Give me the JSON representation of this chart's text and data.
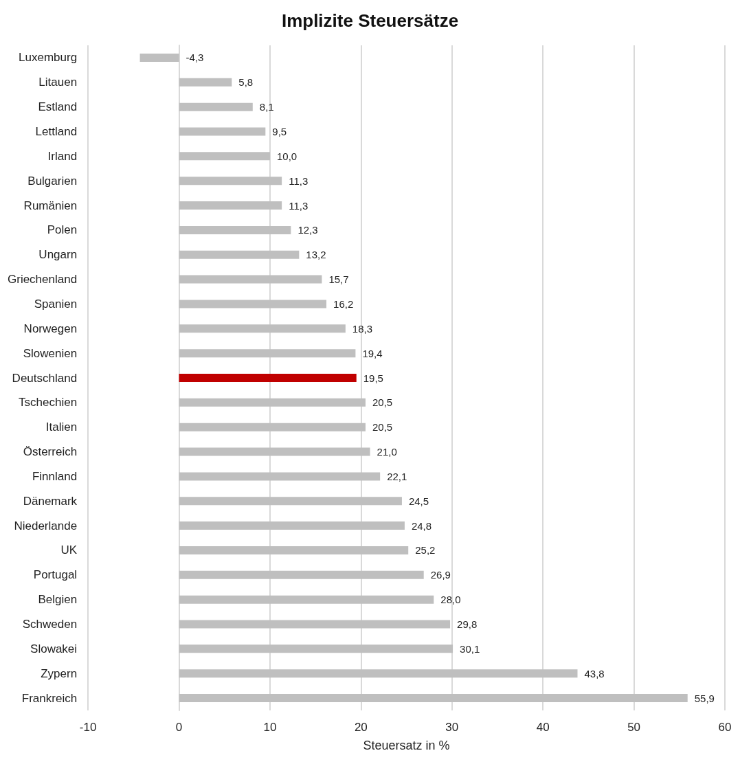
{
  "chart_data": {
    "type": "bar",
    "orientation": "horizontal",
    "title": "Implizite Steuersätze",
    "xlabel": "Steuersatz in %",
    "categories": [
      "Luxemburg",
      "Litauen",
      "Estland",
      "Lettland",
      "Irland",
      "Bulgarien",
      "Rumänien",
      "Polen",
      "Ungarn",
      "Griechenland",
      "Spanien",
      "Norwegen",
      "Slowenien",
      "Deutschland",
      "Tschechien",
      "Italien",
      "Österreich",
      "Finnland",
      "Dänemark",
      "Niederlande",
      "UK",
      "Portugal",
      "Belgien",
      "Schweden",
      "Slowakei",
      "Zypern",
      "Frankreich"
    ],
    "values": [
      -4.3,
      5.8,
      8.1,
      9.5,
      10.0,
      11.3,
      11.3,
      12.3,
      13.2,
      15.7,
      16.2,
      18.3,
      19.4,
      19.5,
      20.5,
      20.5,
      21.0,
      22.1,
      24.5,
      24.8,
      25.2,
      26.9,
      28.0,
      29.8,
      30.1,
      43.8,
      55.9
    ],
    "value_labels": [
      "-4,3",
      "5,8",
      "8,1",
      "9,5",
      "10,0",
      "11,3",
      "11,3",
      "12,3",
      "13,2",
      "15,7",
      "16,2",
      "18,3",
      "19,4",
      "19,5",
      "20,5",
      "20,5",
      "21,0",
      "22,1",
      "24,5",
      "24,8",
      "25,2",
      "26,9",
      "28,0",
      "29,8",
      "30,1",
      "43,8",
      "55,9"
    ],
    "colors": [
      "#bfbfbf",
      "#bfbfbf",
      "#bfbfbf",
      "#bfbfbf",
      "#bfbfbf",
      "#bfbfbf",
      "#bfbfbf",
      "#bfbfbf",
      "#bfbfbf",
      "#bfbfbf",
      "#bfbfbf",
      "#bfbfbf",
      "#bfbfbf",
      "#c00000",
      "#bfbfbf",
      "#bfbfbf",
      "#bfbfbf",
      "#bfbfbf",
      "#bfbfbf",
      "#bfbfbf",
      "#bfbfbf",
      "#bfbfbf",
      "#bfbfbf",
      "#bfbfbf",
      "#bfbfbf",
      "#bfbfbf",
      "#bfbfbf"
    ],
    "xlim": [
      -10,
      60
    ],
    "xticks": [
      -10,
      0,
      10,
      20,
      30,
      40,
      50,
      60
    ],
    "grid": "x"
  }
}
